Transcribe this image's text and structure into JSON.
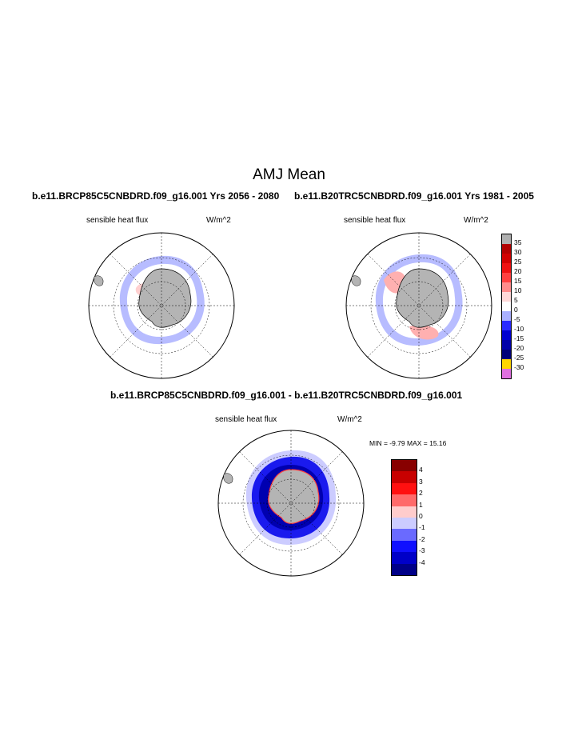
{
  "page": {
    "title": "AMJ Mean",
    "left_case": "b.e11.BRCP85C5CNBDRD.f09_g16.001  Yrs 2056 - 2080",
    "right_case": "b.e11.B20TRC5CNBDRD.f09_g16.001  Yrs 1981 - 2005",
    "diff_case": "b.e11.BRCP85C5CNBDRD.f09_g16.001 - b.e11.B20TRC5CNBDRD.f09_g16.001"
  },
  "panels": {
    "left": {
      "variable": "sensible heat flux",
      "units": "W/m^2"
    },
    "right": {
      "variable": "sensible heat flux",
      "units": "W/m^2"
    },
    "diff": {
      "variable": "sensible heat flux",
      "units": "W/m^2",
      "minmax": "MIN =  -9.79 MAX =  15.16"
    }
  },
  "legend_main": {
    "labels": [
      "35",
      "30",
      "25",
      "20",
      "15",
      "10",
      "5",
      "0",
      "-5",
      "-10",
      "-15",
      "-20",
      "-25",
      "-30"
    ],
    "colors": [
      "#b0b0b0",
      "#b20000",
      "#d10000",
      "#ee1111",
      "#ff4040",
      "#ff8c8c",
      "#ffd8d8",
      "#ffffff",
      "#aab0ff",
      "#2a2aff",
      "#0000d0",
      "#0000a8",
      "#000078",
      "#ffd700",
      "#e070e0"
    ]
  },
  "legend_diff": {
    "labels": [
      "4",
      "3",
      "2",
      "1",
      "0",
      "-1",
      "-2",
      "-3",
      "-4"
    ],
    "colors": [
      "#880000",
      "#c80000",
      "#ff1010",
      "#ff6a6a",
      "#ffcccc",
      "#ccccff",
      "#6a6aff",
      "#1010ff",
      "#0000c8",
      "#000088"
    ]
  }
}
